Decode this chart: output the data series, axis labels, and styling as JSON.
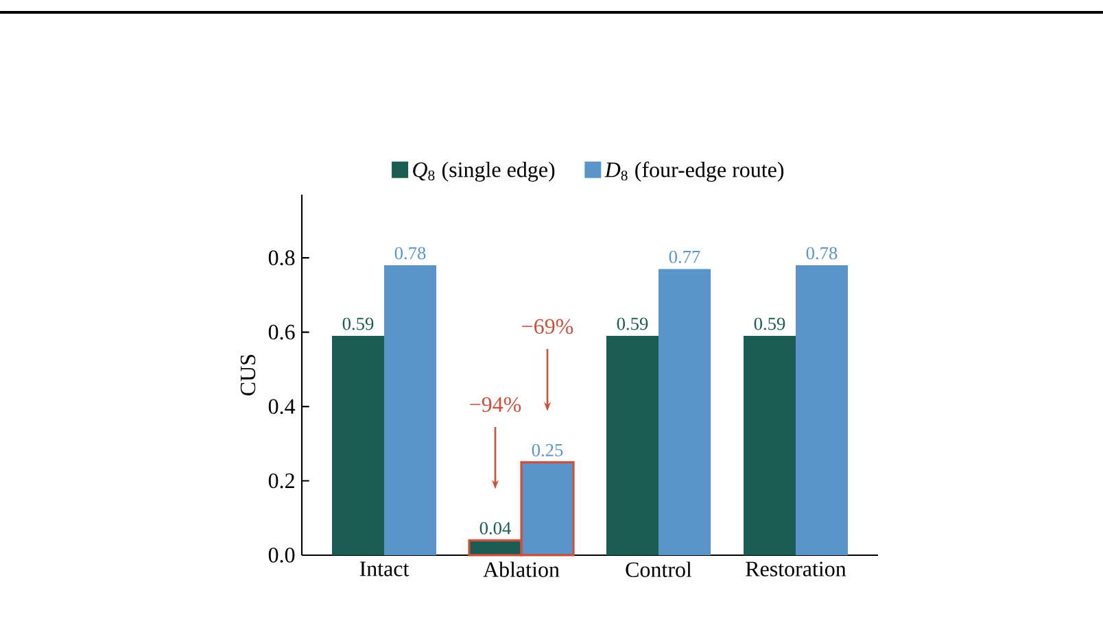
{
  "chart_data": {
    "type": "bar",
    "ylabel": "CUS",
    "categories": [
      "Intact",
      "Ablation",
      "Control",
      "Restoration"
    ],
    "series": [
      {
        "name": "*Q*$_{8}$ (single edge)",
        "color": "#1a5c52",
        "values": [
          0.59,
          0.04,
          0.59,
          0.59
        ]
      },
      {
        "name": "*D*$_{8}$ (four-edge route)",
        "color": "#5b94c8",
        "values": [
          0.78,
          0.25,
          0.77,
          0.78
        ]
      }
    ],
    "ylim": [
      0,
      0.97
    ],
    "yticks": [
      {
        "value": 0,
        "label": "0.0"
      },
      {
        "value": 0.2,
        "label": "0.2"
      },
      {
        "value": 0.4,
        "label": "0.4"
      },
      {
        "value": 0.6,
        "label": "0.6"
      },
      {
        "value": 0.8,
        "label": "0.8"
      }
    ],
    "data_labels": true,
    "legend": "top",
    "grid": false,
    "annotations": [
      "−94%",
      "−69%"
    ]
  }
}
